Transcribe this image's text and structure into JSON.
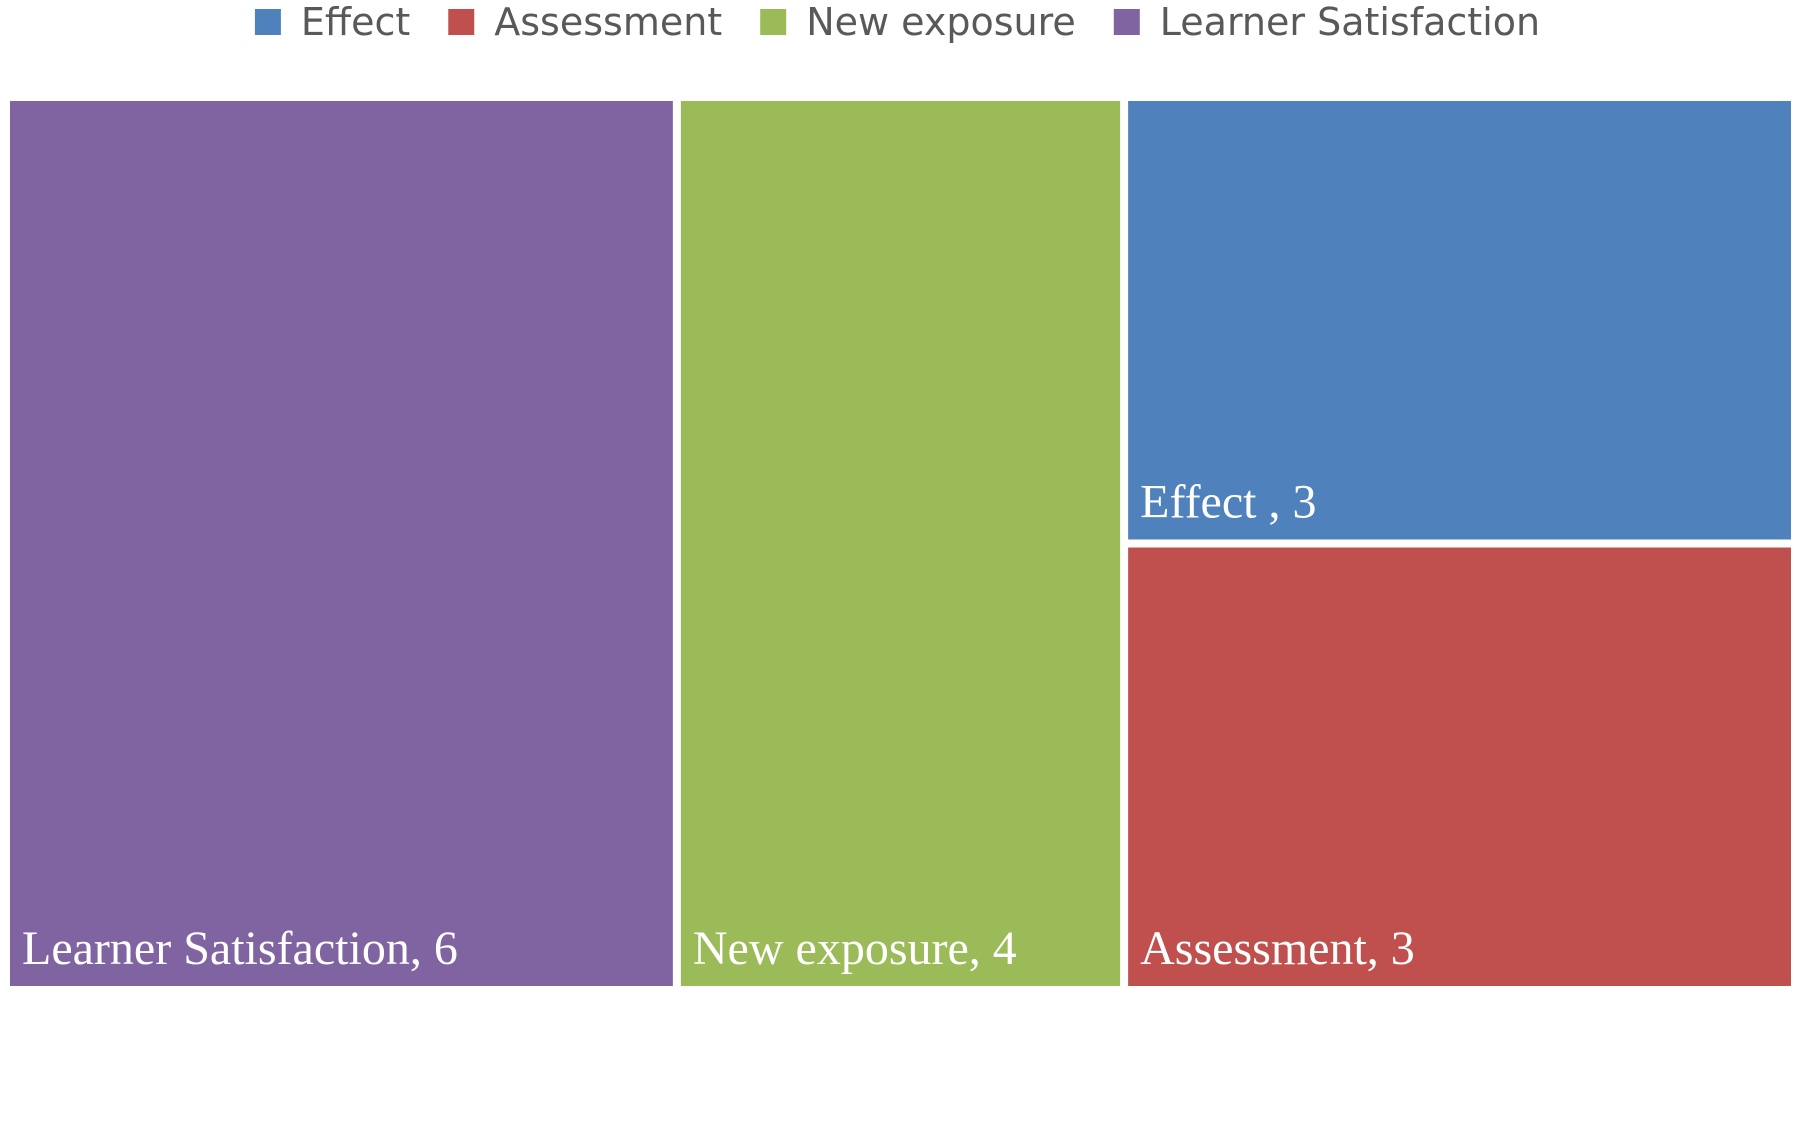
{
  "chart_data": {
    "type": "treemap",
    "legend_position": "top",
    "items": [
      {
        "name": "Effect",
        "value": 3,
        "color": "#4F81BD"
      },
      {
        "name": "Assessment",
        "value": 3,
        "color": "#C0504D"
      },
      {
        "name": "New exposure",
        "value": 4,
        "color": "#9BBB59"
      },
      {
        "name": "Learner Satisfaction",
        "value": 6,
        "color": "#8064A2"
      }
    ],
    "tile_labels": [
      {
        "name": "Learner Satisfaction",
        "text": "Learner Satisfaction, 6"
      },
      {
        "name": "New exposure",
        "text": "New exposure, 4"
      },
      {
        "name": "Effect",
        "text": "Effect , 3"
      },
      {
        "name": "Assessment",
        "text": "Assessment, 3"
      }
    ]
  }
}
